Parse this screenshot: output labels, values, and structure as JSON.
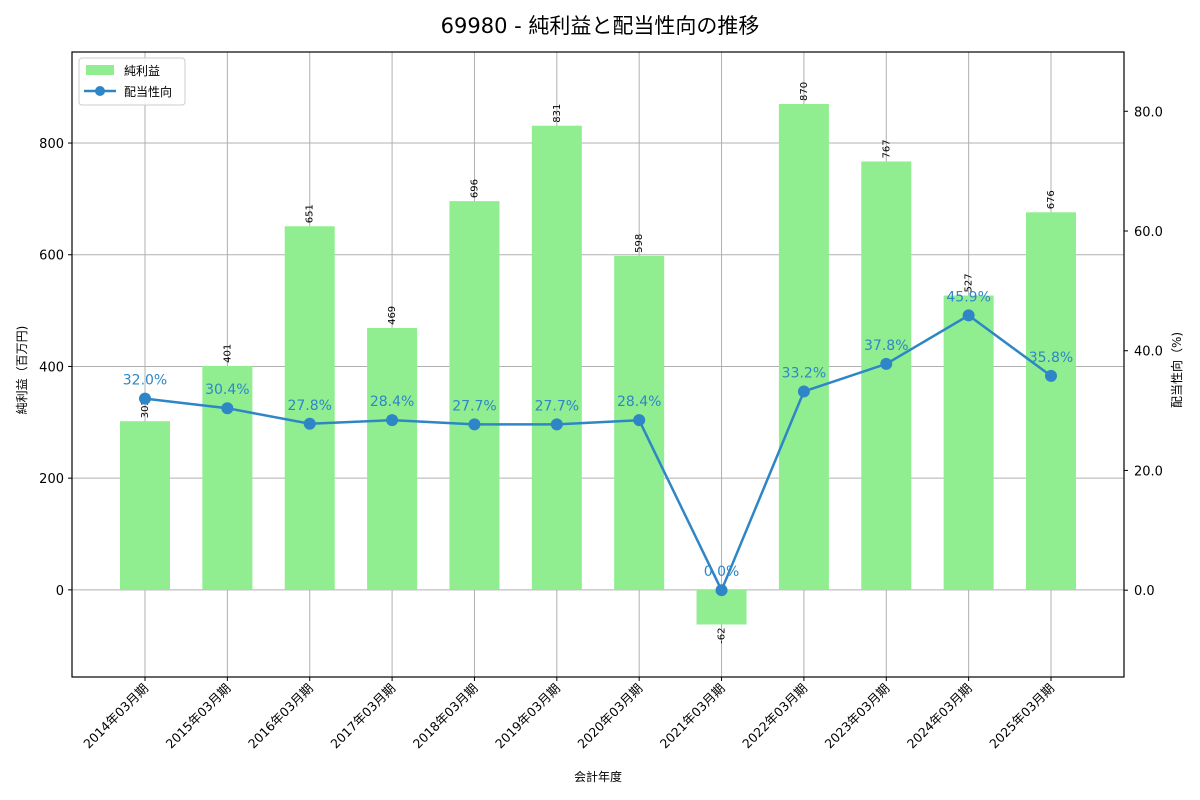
{
  "chart_data": {
    "type": "bar+line",
    "title": "69980 - 純利益と配当性向の推移",
    "xlabel": "会計年度",
    "ylabel_left": "純利益（百万円)",
    "ylabel_right": "配当性向（%)",
    "categories": [
      "2014年03月期",
      "2015年03月期",
      "2016年03月期",
      "2017年03月期",
      "2018年03月期",
      "2019年03月期",
      "2020年03月期",
      "2021年03月期",
      "2022年03月期",
      "2023年03月期",
      "2024年03月期",
      "2025年03月期"
    ],
    "series": [
      {
        "name": "純利益",
        "type": "bar",
        "axis": "left",
        "color": "#90ee90",
        "values": [
          302,
          401,
          651,
          469,
          696,
          831,
          598,
          -62,
          870,
          767,
          527,
          676
        ],
        "labels": [
          "302",
          "401",
          "651",
          "469",
          "696",
          "831",
          "598",
          "-62",
          "870",
          "767",
          "527",
          "676"
        ]
      },
      {
        "name": "配当性向",
        "type": "line",
        "axis": "right",
        "color": "#2f86c6",
        "values": [
          32.0,
          30.4,
          27.8,
          28.4,
          27.7,
          27.7,
          28.4,
          0.0,
          33.2,
          37.8,
          45.9,
          35.8
        ],
        "labels": [
          "32.0%",
          "30.4%",
          "27.8%",
          "28.4%",
          "27.7%",
          "27.7%",
          "28.4%",
          "0.0%",
          "33.2%",
          "37.8%",
          "45.9%",
          "35.8%"
        ]
      }
    ],
    "ylim_left": [
      -156,
      963
    ],
    "yticks_left": [
      "0",
      "200",
      "400",
      "600",
      "800"
    ],
    "ylim_right": [
      -14.5,
      89.9
    ],
    "yticks_right": [
      "0.0",
      "20.0",
      "40.0",
      "60.0",
      "80.0"
    ],
    "grid": true,
    "legend_position": "upper left"
  }
}
